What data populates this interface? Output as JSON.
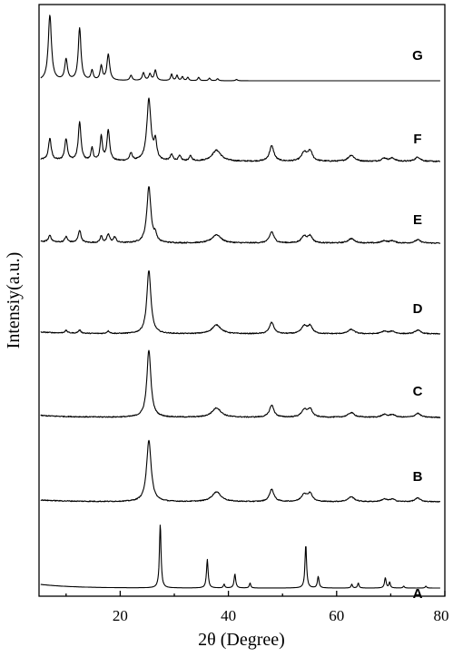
{
  "chart_data": {
    "type": "line",
    "xlabel": "2θ (Degree)",
    "ylabel": "Intensiy(a.u.)",
    "xlim": [
      5,
      80
    ],
    "x_ticks": [
      20,
      40,
      60,
      80
    ],
    "x_tick_labels": [
      "20",
      "40",
      "60",
      "80"
    ],
    "y_ticks": false,
    "grid": false,
    "legend": "none",
    "series_order_top_to_bottom": [
      "G",
      "F",
      "E",
      "D",
      "C",
      "B",
      "A"
    ],
    "series": [
      {
        "name": "G",
        "baseline_slope": 0.0,
        "noise": 0.0,
        "peaks": [
          {
            "x": 7.0,
            "h": 1.0,
            "w": 0.35
          },
          {
            "x": 10.0,
            "h": 0.32,
            "w": 0.3
          },
          {
            "x": 12.5,
            "h": 0.8,
            "w": 0.3
          },
          {
            "x": 14.8,
            "h": 0.15,
            "w": 0.25
          },
          {
            "x": 16.5,
            "h": 0.22,
            "w": 0.25
          },
          {
            "x": 17.8,
            "h": 0.4,
            "w": 0.3
          },
          {
            "x": 22.0,
            "h": 0.08,
            "w": 0.25
          },
          {
            "x": 24.3,
            "h": 0.12,
            "w": 0.25
          },
          {
            "x": 25.5,
            "h": 0.1,
            "w": 0.25
          },
          {
            "x": 26.5,
            "h": 0.16,
            "w": 0.25
          },
          {
            "x": 29.5,
            "h": 0.1,
            "w": 0.2
          },
          {
            "x": 30.5,
            "h": 0.08,
            "w": 0.2
          },
          {
            "x": 31.5,
            "h": 0.06,
            "w": 0.2
          },
          {
            "x": 32.5,
            "h": 0.05,
            "w": 0.2
          },
          {
            "x": 34.5,
            "h": 0.05,
            "w": 0.2
          },
          {
            "x": 36.5,
            "h": 0.04,
            "w": 0.2
          },
          {
            "x": 38.0,
            "h": 0.03,
            "w": 0.2
          },
          {
            "x": 41.5,
            "h": 0.02,
            "w": 0.2
          }
        ]
      },
      {
        "name": "F",
        "baseline_slope": 0.02,
        "noise": 0.02,
        "peaks": [
          {
            "x": 7.0,
            "h": 0.35,
            "w": 0.3
          },
          {
            "x": 10.0,
            "h": 0.35,
            "w": 0.3
          },
          {
            "x": 12.5,
            "h": 0.62,
            "w": 0.3
          },
          {
            "x": 14.8,
            "h": 0.2,
            "w": 0.25
          },
          {
            "x": 16.5,
            "h": 0.4,
            "w": 0.25
          },
          {
            "x": 17.8,
            "h": 0.5,
            "w": 0.3
          },
          {
            "x": 22.0,
            "h": 0.12,
            "w": 0.3
          },
          {
            "x": 25.3,
            "h": 1.0,
            "w": 0.45
          },
          {
            "x": 26.5,
            "h": 0.3,
            "w": 0.3
          },
          {
            "x": 29.5,
            "h": 0.1,
            "w": 0.3
          },
          {
            "x": 31.0,
            "h": 0.08,
            "w": 0.3
          },
          {
            "x": 33.0,
            "h": 0.08,
            "w": 0.3
          },
          {
            "x": 37.8,
            "h": 0.18,
            "w": 1.0
          },
          {
            "x": 48.0,
            "h": 0.25,
            "w": 0.5
          },
          {
            "x": 54.0,
            "h": 0.14,
            "w": 0.6
          },
          {
            "x": 55.1,
            "h": 0.16,
            "w": 0.5
          },
          {
            "x": 62.7,
            "h": 0.1,
            "w": 0.7
          },
          {
            "x": 68.8,
            "h": 0.05,
            "w": 0.6
          },
          {
            "x": 70.3,
            "h": 0.05,
            "w": 0.6
          },
          {
            "x": 75.0,
            "h": 0.07,
            "w": 0.6
          }
        ]
      },
      {
        "name": "E",
        "baseline_slope": 0.02,
        "noise": 0.02,
        "peaks": [
          {
            "x": 7.0,
            "h": 0.12,
            "w": 0.3
          },
          {
            "x": 10.0,
            "h": 0.1,
            "w": 0.3
          },
          {
            "x": 12.5,
            "h": 0.22,
            "w": 0.3
          },
          {
            "x": 16.5,
            "h": 0.12,
            "w": 0.25
          },
          {
            "x": 17.8,
            "h": 0.15,
            "w": 0.3
          },
          {
            "x": 19.0,
            "h": 0.1,
            "w": 0.3
          },
          {
            "x": 25.3,
            "h": 1.0,
            "w": 0.45
          },
          {
            "x": 26.5,
            "h": 0.12,
            "w": 0.3
          },
          {
            "x": 37.8,
            "h": 0.15,
            "w": 1.0
          },
          {
            "x": 48.0,
            "h": 0.2,
            "w": 0.5
          },
          {
            "x": 54.0,
            "h": 0.12,
            "w": 0.6
          },
          {
            "x": 55.1,
            "h": 0.12,
            "w": 0.5
          },
          {
            "x": 62.7,
            "h": 0.08,
            "w": 0.7
          },
          {
            "x": 68.8,
            "h": 0.04,
            "w": 0.6
          },
          {
            "x": 70.3,
            "h": 0.04,
            "w": 0.6
          },
          {
            "x": 75.0,
            "h": 0.06,
            "w": 0.6
          }
        ]
      },
      {
        "name": "D",
        "baseline_slope": 0.02,
        "noise": 0.015,
        "peaks": [
          {
            "x": 10.0,
            "h": 0.04,
            "w": 0.3
          },
          {
            "x": 12.5,
            "h": 0.05,
            "w": 0.3
          },
          {
            "x": 17.8,
            "h": 0.04,
            "w": 0.3
          },
          {
            "x": 25.3,
            "h": 1.0,
            "w": 0.45
          },
          {
            "x": 37.8,
            "h": 0.14,
            "w": 1.0
          },
          {
            "x": 48.0,
            "h": 0.18,
            "w": 0.5
          },
          {
            "x": 54.0,
            "h": 0.12,
            "w": 0.6
          },
          {
            "x": 55.1,
            "h": 0.12,
            "w": 0.5
          },
          {
            "x": 62.7,
            "h": 0.07,
            "w": 0.7
          },
          {
            "x": 68.8,
            "h": 0.04,
            "w": 0.6
          },
          {
            "x": 70.3,
            "h": 0.04,
            "w": 0.6
          },
          {
            "x": 75.0,
            "h": 0.06,
            "w": 0.6
          }
        ]
      },
      {
        "name": "C",
        "baseline_slope": 0.02,
        "noise": 0.015,
        "peaks": [
          {
            "x": 25.3,
            "h": 1.0,
            "w": 0.45
          },
          {
            "x": 37.8,
            "h": 0.14,
            "w": 1.0
          },
          {
            "x": 48.0,
            "h": 0.18,
            "w": 0.5
          },
          {
            "x": 54.0,
            "h": 0.11,
            "w": 0.6
          },
          {
            "x": 55.1,
            "h": 0.12,
            "w": 0.5
          },
          {
            "x": 62.7,
            "h": 0.07,
            "w": 0.7
          },
          {
            "x": 68.8,
            "h": 0.04,
            "w": 0.6
          },
          {
            "x": 70.3,
            "h": 0.04,
            "w": 0.6
          },
          {
            "x": 75.0,
            "h": 0.06,
            "w": 0.6
          }
        ]
      },
      {
        "name": "B",
        "baseline_slope": 0.02,
        "noise": 0.015,
        "peaks": [
          {
            "x": 25.3,
            "h": 1.0,
            "w": 0.5
          },
          {
            "x": 37.8,
            "h": 0.16,
            "w": 1.0
          },
          {
            "x": 48.0,
            "h": 0.2,
            "w": 0.5
          },
          {
            "x": 54.0,
            "h": 0.12,
            "w": 0.6
          },
          {
            "x": 55.1,
            "h": 0.13,
            "w": 0.5
          },
          {
            "x": 62.7,
            "h": 0.08,
            "w": 0.7
          },
          {
            "x": 68.8,
            "h": 0.04,
            "w": 0.6
          },
          {
            "x": 70.3,
            "h": 0.04,
            "w": 0.6
          },
          {
            "x": 75.0,
            "h": 0.06,
            "w": 0.6
          }
        ]
      },
      {
        "name": "A",
        "baseline_slope": 0.04,
        "noise": 0.0,
        "peaks": [
          {
            "x": 27.4,
            "h": 1.0,
            "w": 0.18
          },
          {
            "x": 36.1,
            "h": 0.45,
            "w": 0.18
          },
          {
            "x": 39.2,
            "h": 0.06,
            "w": 0.15
          },
          {
            "x": 41.2,
            "h": 0.22,
            "w": 0.18
          },
          {
            "x": 44.0,
            "h": 0.08,
            "w": 0.15
          },
          {
            "x": 54.3,
            "h": 0.68,
            "w": 0.18
          },
          {
            "x": 56.6,
            "h": 0.18,
            "w": 0.18
          },
          {
            "x": 62.8,
            "h": 0.06,
            "w": 0.15
          },
          {
            "x": 64.0,
            "h": 0.08,
            "w": 0.15
          },
          {
            "x": 69.0,
            "h": 0.16,
            "w": 0.18
          },
          {
            "x": 69.8,
            "h": 0.09,
            "w": 0.15
          },
          {
            "x": 72.4,
            "h": 0.03,
            "w": 0.15
          },
          {
            "x": 76.5,
            "h": 0.03,
            "w": 0.15
          }
        ]
      }
    ]
  }
}
